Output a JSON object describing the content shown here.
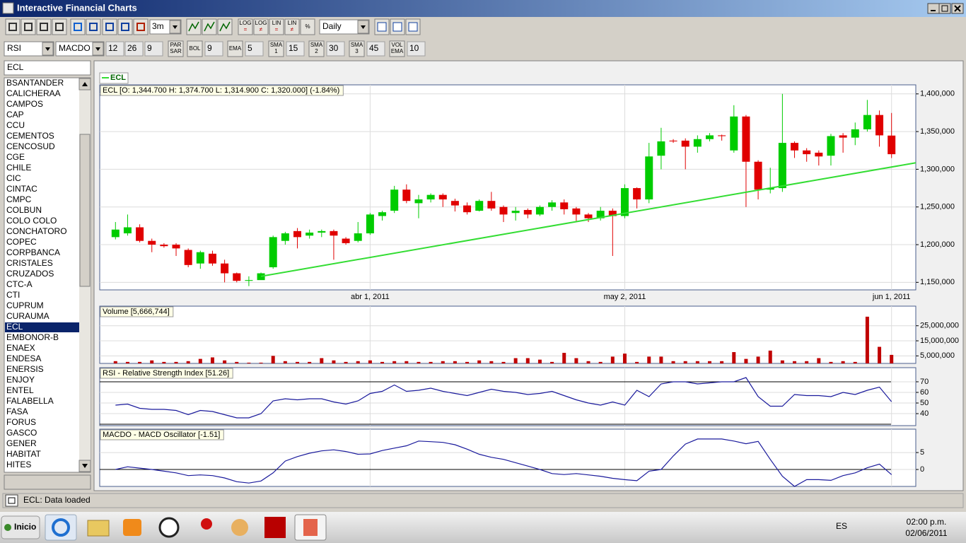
{
  "window": {
    "title": "Interactive Financial Charts"
  },
  "toolbar": {
    "period": "3m",
    "interval": "Daily",
    "scale_buttons": [
      [
        "LOG",
        "="
      ],
      [
        "LOG",
        "≠"
      ],
      [
        "LIN",
        "="
      ],
      [
        "LIN",
        "≠"
      ],
      [
        "%"
      ]
    ],
    "indicator_1": "RSI",
    "indicator_2": "MACDO",
    "macd_params": [
      "12",
      "26",
      "9"
    ],
    "indicator_buttons": [
      {
        "label": [
          "PAR",
          "SAR"
        ]
      },
      {
        "label": [
          "BOL"
        ],
        "field": "9"
      },
      {
        "label": [
          "EMA"
        ],
        "field": "5"
      },
      {
        "label": [
          "SMA",
          "1"
        ],
        "field": "15"
      },
      {
        "label": [
          "SMA",
          "2"
        ],
        "field": "30"
      },
      {
        "label": [
          "SMA",
          "3"
        ],
        "field": "45"
      },
      {
        "label": [
          "VOL",
          "EMA"
        ],
        "field": "10"
      }
    ]
  },
  "search": "ECL",
  "selected": "ECL",
  "tickers": [
    "BSANTANDER",
    "CALICHERAA",
    "CAMPOS",
    "CAP",
    "CCU",
    "CEMENTOS",
    "CENCOSUD",
    "CGE",
    "CHILE",
    "CIC",
    "CINTAC",
    "CMPC",
    "COLBUN",
    "COLO COLO",
    "CONCHATORO",
    "COPEC",
    "CORPBANCA",
    "CRISTALES",
    "CRUZADOS",
    "CTC-A",
    "CTI",
    "CUPRUM",
    "CURAUMA",
    "ECL",
    "EMBONOR-B",
    "ENAEX",
    "ENDESA",
    "ENERSIS",
    "ENJOY",
    "ENTEL",
    "FALABELLA",
    "FASA",
    "FORUS",
    "GASCO",
    "GENER",
    "HABITAT",
    "HITES"
  ],
  "legend": "ECL",
  "status": "ECL: Data loaded",
  "taskbar": {
    "start": "Inicio",
    "language": "ES",
    "time": "02:00 p.m.",
    "date": "02/06/2011"
  },
  "chart_data": [
    {
      "type": "candlestick",
      "title": "ECL [O: 1,344.700  H: 1,374.700  L: 1,314.900  C: 1,320.000] (-1.84%)",
      "up_color": "#00cc00",
      "down_color": "#e00000",
      "xlim": [
        -1.3,
        66.0
      ],
      "xticks": [
        {
          "value": 21,
          "label": "abr 1, 2011"
        },
        {
          "value": 42,
          "label": "may 2, 2011"
        },
        {
          "value": 64,
          "label": "jun 1, 2011"
        }
      ],
      "ylim": [
        1140000,
        1412000
      ],
      "yticks": [
        {
          "value": 1150000,
          "label": "1,150,000"
        },
        {
          "value": 1200000,
          "label": "1,200,000"
        },
        {
          "value": 1250000,
          "label": "1,250,000"
        },
        {
          "value": 1300000,
          "label": "1,300,000"
        },
        {
          "value": 1350000,
          "label": "1,350,000"
        },
        {
          "value": 1400000,
          "label": "1,400,000"
        }
      ],
      "grid": true,
      "open": [
        1210000,
        1215000,
        1223000,
        1205000,
        1200000,
        1200000,
        1193000,
        1175000,
        1188000,
        1175000,
        1162000,
        1152000,
        1153000,
        1170000,
        1205000,
        1218000,
        1212000,
        1216000,
        1218000,
        1208000,
        1205000,
        1215000,
        1238000,
        1245000,
        1273000,
        1255000,
        1260000,
        1266000,
        1258000,
        1252000,
        1245000,
        1258000,
        1250000,
        1242000,
        1246000,
        1240000,
        1250000,
        1256000,
        1248000,
        1240000,
        1235000,
        1245000,
        1238000,
        1275000,
        1260000,
        1318000,
        1338000,
        1338000,
        1330000,
        1340000,
        1345000,
        1325000,
        1370000,
        1310000,
        1273000,
        1275000,
        1335000,
        1325000,
        1322000,
        1318000,
        1345000,
        1342000,
        1353000,
        1372000,
        1344700
      ],
      "high": [
        1230000,
        1240000,
        1227000,
        1208000,
        1202000,
        1202000,
        1195000,
        1192000,
        1192000,
        1180000,
        1163000,
        1158000,
        1163000,
        1212000,
        1217000,
        1222000,
        1220000,
        1220000,
        1220000,
        1210000,
        1230000,
        1242000,
        1245000,
        1278000,
        1280000,
        1266000,
        1268000,
        1268000,
        1261000,
        1256000,
        1260000,
        1270000,
        1252000,
        1250000,
        1248000,
        1252000,
        1259000,
        1260000,
        1250000,
        1242000,
        1250000,
        1248000,
        1280000,
        1276000,
        1335000,
        1355000,
        1340000,
        1341000,
        1345000,
        1348000,
        1346000,
        1385000,
        1372000,
        1312000,
        1302000,
        1400000,
        1337000,
        1328000,
        1325000,
        1347000,
        1348000,
        1362000,
        1392000,
        1378000,
        1374700
      ],
      "low": [
        1207000,
        1212000,
        1203000,
        1190000,
        1196000,
        1185000,
        1170000,
        1168000,
        1172000,
        1150000,
        1150000,
        1145000,
        1155000,
        1168000,
        1200000,
        1195000,
        1208000,
        1210000,
        1180000,
        1200000,
        1203000,
        1213000,
        1232000,
        1242000,
        1255000,
        1235000,
        1256000,
        1250000,
        1244000,
        1240000,
        1244000,
        1245000,
        1230000,
        1232000,
        1235000,
        1238000,
        1245000,
        1240000,
        1230000,
        1230000,
        1232000,
        1185000,
        1235000,
        1248000,
        1255000,
        1300000,
        1335000,
        1300000,
        1322000,
        1337000,
        1338000,
        1322000,
        1250000,
        1260000,
        1268000,
        1270000,
        1315000,
        1310000,
        1305000,
        1305000,
        1322000,
        1332000,
        1350000,
        1330000,
        1314900
      ],
      "close": [
        1220000,
        1223000,
        1205000,
        1200000,
        1198000,
        1195000,
        1173000,
        1190000,
        1175000,
        1162000,
        1152000,
        1153000,
        1162000,
        1210000,
        1215000,
        1210000,
        1216000,
        1218000,
        1212000,
        1202000,
        1215000,
        1240000,
        1243000,
        1273000,
        1258000,
        1260000,
        1266000,
        1260000,
        1252000,
        1243000,
        1258000,
        1248000,
        1240000,
        1245000,
        1240000,
        1250000,
        1256000,
        1247000,
        1240000,
        1235000,
        1245000,
        1238000,
        1275000,
        1260000,
        1317000,
        1337000,
        1337000,
        1330000,
        1340000,
        1345000,
        1344000,
        1370000,
        1310000,
        1273000,
        1275000,
        1335000,
        1325000,
        1320000,
        1317000,
        1344000,
        1342000,
        1353000,
        1372000,
        1345000,
        1320000
      ],
      "trendline": {
        "x": [
          12,
          64
        ],
        "values": [
          1158000,
          1303000
        ],
        "color": "#33dd33"
      }
    },
    {
      "type": "bar",
      "title": "Volume [5,666,744]",
      "color": "#c00000",
      "ylim": [
        0,
        38000000
      ],
      "yticks": [
        {
          "value": 5000000,
          "label": "5,000,000"
        },
        {
          "value": 15000000,
          "label": "15,000,000"
        },
        {
          "value": 25000000,
          "label": "25,000,000"
        }
      ],
      "values": [
        1500000,
        1000000,
        1000000,
        2000000,
        1000000,
        1000000,
        1500000,
        3000000,
        4000000,
        2000000,
        1000000,
        500000,
        500000,
        5000000,
        1500000,
        1000000,
        1000000,
        3500000,
        2000000,
        1000000,
        1500000,
        2000000,
        1000000,
        1500000,
        1500000,
        1000000,
        1000000,
        1500000,
        1500000,
        1000000,
        2000000,
        1500000,
        1000000,
        3500000,
        3500000,
        2500000,
        1000000,
        7000000,
        3500000,
        1500000,
        1000000,
        4500000,
        6500000,
        1000000,
        4500000,
        4500000,
        1500000,
        1500000,
        1500000,
        1500000,
        1500000,
        7500000,
        3000000,
        4500000,
        8500000,
        2000000,
        1500000,
        1500000,
        3500000,
        1000000,
        1500000,
        1000000,
        31000000,
        11000000,
        5666744
      ]
    },
    {
      "type": "line",
      "title": "RSI - Relative Strength Index [51.26]",
      "color": "#1a1a9c",
      "ylim": [
        28.7,
        83.3
      ],
      "yticks": [
        40,
        50,
        60,
        70
      ],
      "levels": [
        70,
        30
      ],
      "values": [
        48,
        49,
        45,
        44,
        44,
        43,
        39,
        43,
        42,
        39,
        36,
        36,
        40,
        52,
        54,
        53,
        54,
        54,
        51,
        49,
        52,
        59,
        61,
        67,
        61,
        62,
        64,
        61,
        59,
        57,
        60,
        63,
        61,
        60,
        58,
        59,
        61,
        57,
        53,
        50,
        48,
        51,
        48,
        62,
        56,
        68,
        70,
        70,
        68,
        69,
        70,
        70,
        74,
        56,
        47,
        47,
        58,
        57,
        57,
        56,
        60,
        58,
        62,
        65,
        51.26
      ]
    },
    {
      "type": "line",
      "title": "MACDO - MACD Oscillator [-1.51]",
      "color": "#1a1a9c",
      "ylim": [
        -5,
        11.9
      ],
      "yticks": [
        0,
        5
      ],
      "levels": [
        0
      ],
      "values": [
        0,
        0.8,
        0.4,
        0,
        -0.5,
        -1,
        -1.8,
        -1.6,
        -1.8,
        -2.5,
        -3.6,
        -4,
        -3.4,
        -1,
        2.5,
        3.8,
        4.8,
        5.5,
        5.8,
        5.3,
        4.5,
        4.6,
        5.6,
        6.3,
        7,
        8.4,
        8.2,
        8,
        7.3,
        6,
        4.5,
        3.6,
        3,
        2,
        1,
        0,
        -1.2,
        -1.5,
        -1.2,
        -1.6,
        -2,
        -2.6,
        -3,
        -3.3,
        -0.5,
        0,
        4,
        7.5,
        9,
        9,
        9,
        8.4,
        7.6,
        8.3,
        3,
        -2,
        -5,
        -3,
        -3,
        -3.2,
        -1.8,
        -1,
        0.5,
        1.6,
        -1.51
      ]
    }
  ]
}
